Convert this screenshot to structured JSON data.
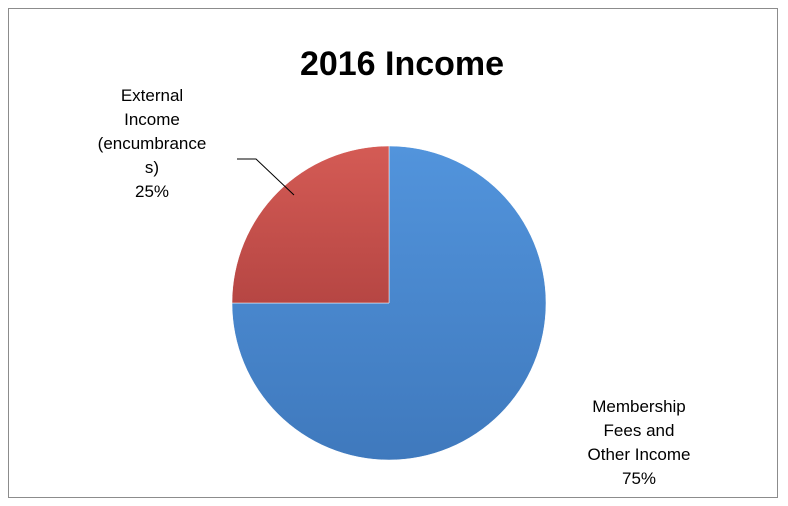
{
  "chart_data": {
    "type": "pie",
    "title": "2016 Income",
    "slices": [
      {
        "name": "Membership Fees and Other Income",
        "value": 75,
        "label_lines": [
          "Membership",
          "Fees and",
          "Other Income"
        ],
        "percent_label": "75%",
        "color": "#4a8ad0"
      },
      {
        "name": "External Income (encumbrances)",
        "value": 25,
        "label_lines": [
          "External",
          "Income",
          "(encumbrance",
          "s)"
        ],
        "percent_label": "25%",
        "color": "#c9524d"
      }
    ],
    "legend": "none"
  }
}
